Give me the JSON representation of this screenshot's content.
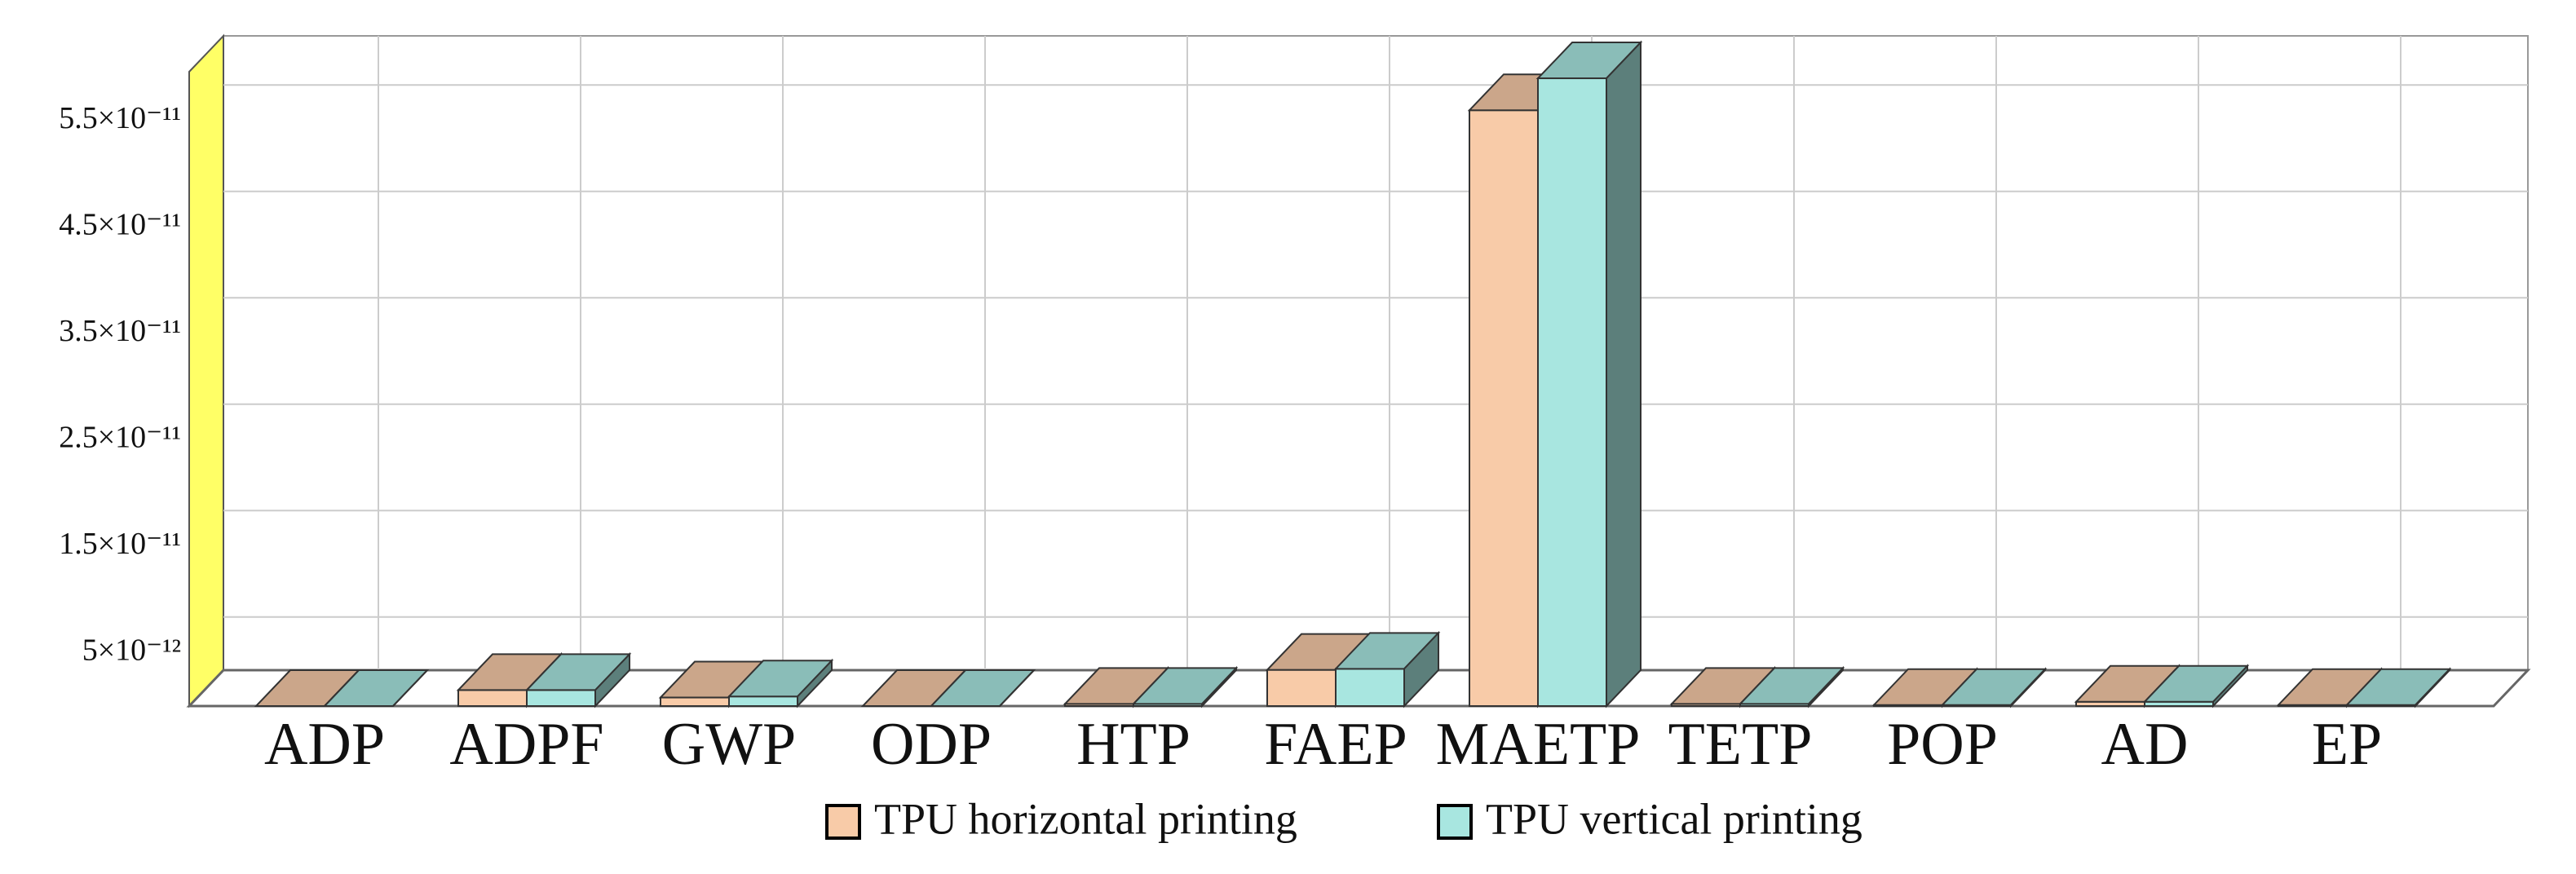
{
  "chart_data": {
    "type": "bar3d",
    "categories": [
      "ADP",
      "ADPF",
      "GWP",
      "ODP",
      "HTP",
      "FAEP",
      "MAETP",
      "TETP",
      "POP",
      "AD",
      "EP"
    ],
    "series": [
      {
        "name": "TPU  horizontal printing",
        "color": "#f8cba8",
        "values": [
          0,
          1.5e-12,
          8e-13,
          0,
          2e-13,
          3.4e-12,
          5.6e-11,
          2e-13,
          1e-13,
          4e-13,
          1e-13
        ]
      },
      {
        "name": "TPU  vertical printing",
        "color": "#a8e6e0",
        "values": [
          0,
          1.5e-12,
          9e-13,
          0,
          2e-13,
          3.5e-12,
          5.9e-11,
          2e-13,
          1e-13,
          4e-13,
          1e-13
        ]
      }
    ],
    "ylim": [
      0,
      6e-11
    ],
    "yticks": [
      {
        "value": 5e-12,
        "label": "5×10⁻¹²"
      },
      {
        "value": 1.5e-11,
        "label": "1.5×10⁻¹¹"
      },
      {
        "value": 2.5e-11,
        "label": "2.5×10⁻¹¹"
      },
      {
        "value": 3.5e-11,
        "label": "3.5×10⁻¹¹"
      },
      {
        "value": 4.5e-11,
        "label": "4.5×10⁻¹¹"
      },
      {
        "value": 5.5e-11,
        "label": "5.5×10⁻¹¹"
      }
    ],
    "grid": true
  }
}
